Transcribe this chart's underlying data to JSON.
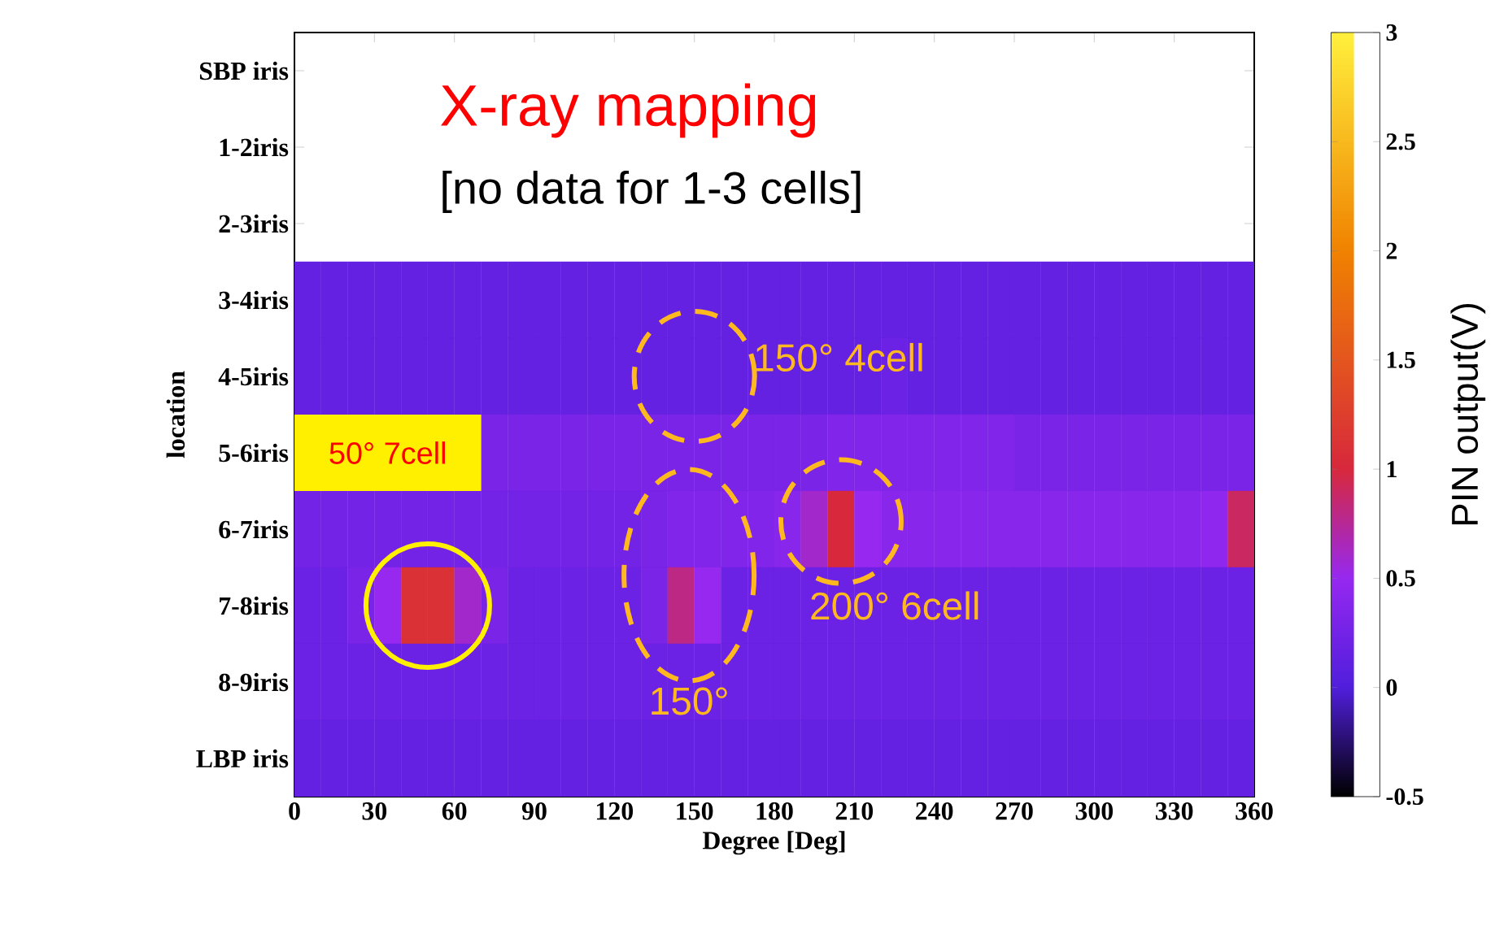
{
  "chart_data": {
    "type": "heatmap",
    "xlabel": "Degree [Deg]",
    "ylabel": "location",
    "clabel": "PIN output(V)",
    "x": [
      5,
      15,
      25,
      35,
      45,
      55,
      65,
      75,
      85,
      95,
      105,
      115,
      125,
      135,
      145,
      155,
      165,
      175,
      185,
      195,
      205,
      215,
      225,
      235,
      245,
      255,
      265,
      275,
      285,
      295,
      305,
      315,
      325,
      335,
      345,
      355
    ],
    "xlim": [
      0,
      360
    ],
    "xticks": [
      0,
      30,
      60,
      90,
      120,
      150,
      180,
      210,
      240,
      270,
      300,
      330,
      360
    ],
    "y_categories": [
      "SBP iris",
      "1-2iris",
      "2-3iris",
      "3-4iris",
      "4-5iris",
      "5-6iris",
      "6-7iris",
      "7-8iris",
      "8-9iris",
      "LBP iris"
    ],
    "cells": [
      [
        null,
        null,
        null,
        null,
        null,
        null,
        null,
        null,
        null,
        null,
        null,
        null,
        null,
        null,
        null,
        null,
        null,
        null,
        null,
        null,
        null,
        null,
        null,
        null,
        null,
        null,
        null,
        null,
        null,
        null,
        null,
        null,
        null,
        null,
        null,
        null
      ],
      [
        null,
        null,
        null,
        null,
        null,
        null,
        null,
        null,
        null,
        null,
        null,
        null,
        null,
        null,
        null,
        null,
        null,
        null,
        null,
        null,
        null,
        null,
        null,
        null,
        null,
        null,
        null,
        null,
        null,
        null,
        null,
        null,
        null,
        null,
        null,
        null
      ],
      [
        null,
        null,
        null,
        null,
        null,
        null,
        null,
        null,
        null,
        null,
        null,
        null,
        null,
        null,
        null,
        null,
        null,
        null,
        null,
        null,
        null,
        null,
        null,
        null,
        null,
        null,
        null,
        null,
        null,
        null,
        null,
        null,
        null,
        null,
        null,
        null
      ],
      [
        0.15,
        0.15,
        0.15,
        0.15,
        0.15,
        0.15,
        0.15,
        0.15,
        0.15,
        0.15,
        0.15,
        0.15,
        0.15,
        0.15,
        0.15,
        0.15,
        0.15,
        0.15,
        0.15,
        0.15,
        0.15,
        0.15,
        0.15,
        0.15,
        0.15,
        0.15,
        0.15,
        0.15,
        0.15,
        0.15,
        0.15,
        0.15,
        0.15,
        0.15,
        0.15,
        0.15
      ],
      [
        0.15,
        0.15,
        0.15,
        0.15,
        0.15,
        0.15,
        0.15,
        0.15,
        0.15,
        0.15,
        0.15,
        0.15,
        0.15,
        0.15,
        0.15,
        0.15,
        0.15,
        0.15,
        0.15,
        0.15,
        0.15,
        0.15,
        0.2,
        0.15,
        0.15,
        0.15,
        0.15,
        0.15,
        0.15,
        0.15,
        0.15,
        0.15,
        0.15,
        0.15,
        0.15,
        0.15
      ],
      [
        null,
        null,
        null,
        null,
        null,
        null,
        null,
        0.3,
        0.3,
        0.3,
        0.3,
        0.3,
        0.3,
        0.3,
        0.3,
        0.3,
        0.3,
        0.3,
        0.3,
        0.3,
        0.35,
        0.35,
        0.35,
        0.35,
        0.35,
        0.35,
        0.35,
        0.3,
        0.3,
        0.3,
        0.3,
        0.3,
        0.3,
        0.3,
        0.3,
        0.3
      ],
      [
        0.25,
        0.25,
        0.25,
        0.25,
        0.25,
        0.25,
        0.25,
        0.25,
        0.25,
        0.25,
        0.25,
        0.25,
        0.25,
        0.3,
        0.35,
        0.35,
        0.35,
        0.35,
        0.4,
        0.6,
        1.0,
        0.5,
        0.4,
        0.4,
        0.4,
        0.4,
        0.4,
        0.4,
        0.4,
        0.4,
        0.4,
        0.4,
        0.4,
        0.4,
        0.45,
        0.9
      ],
      [
        0.2,
        0.2,
        0.3,
        0.5,
        1.1,
        1.1,
        0.6,
        0.3,
        0.2,
        0.2,
        0.2,
        0.2,
        0.2,
        0.3,
        0.8,
        0.5,
        0.2,
        0.2,
        0.2,
        0.2,
        0.2,
        0.2,
        0.2,
        0.2,
        0.2,
        0.2,
        0.2,
        0.2,
        0.2,
        0.2,
        0.2,
        0.2,
        0.2,
        0.2,
        0.2,
        0.2
      ],
      [
        0.2,
        0.2,
        0.2,
        0.2,
        0.2,
        0.2,
        0.2,
        0.2,
        0.2,
        0.2,
        0.2,
        0.2,
        0.2,
        0.2,
        0.2,
        0.2,
        0.2,
        0.2,
        0.2,
        0.2,
        0.2,
        0.2,
        0.2,
        0.2,
        0.2,
        0.2,
        0.2,
        0.2,
        0.2,
        0.2,
        0.2,
        0.2,
        0.2,
        0.2,
        0.2,
        0.2
      ],
      [
        0.15,
        0.15,
        0.15,
        0.15,
        0.15,
        0.15,
        0.15,
        0.15,
        0.15,
        0.15,
        0.15,
        0.15,
        0.15,
        0.15,
        0.15,
        0.15,
        0.15,
        0.15,
        0.15,
        0.15,
        0.15,
        0.15,
        0.15,
        0.15,
        0.15,
        0.15,
        0.15,
        0.15,
        0.15,
        0.15,
        0.15,
        0.15,
        0.15,
        0.15,
        0.15,
        0.15
      ]
    ],
    "clim": [
      -0.5,
      3
    ],
    "cticks": [
      -0.5,
      0,
      0.5,
      1,
      1.5,
      2,
      2.5,
      3
    ],
    "annotations": [
      "X-ray mapping",
      "[no data for 1-3 cells]",
      "150° 4cell",
      "50° 7cell",
      "200° 6cell",
      "150°"
    ]
  }
}
